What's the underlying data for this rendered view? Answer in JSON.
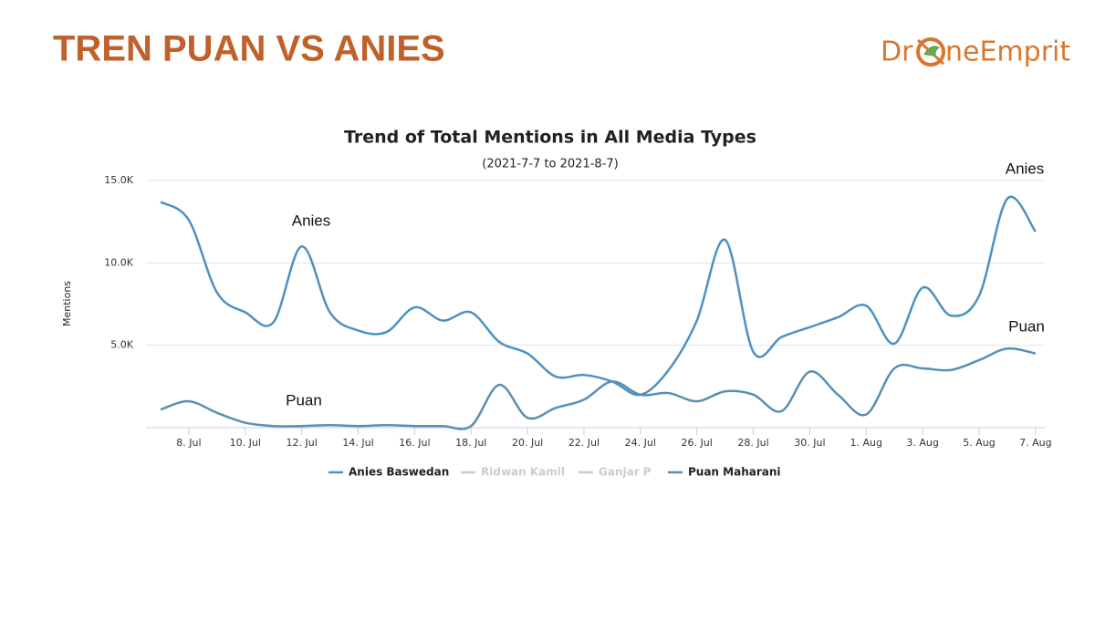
{
  "header": {
    "title": "TREN PUAN VS ANIES",
    "logo": [
      "Dr",
      "neEmprit"
    ]
  },
  "chart_data": {
    "type": "line",
    "title": "Trend of Total Mentions in All Media Types",
    "subtitle": "(2021-7-7 to 2021-8-7)",
    "y_label": "Mentions",
    "categories": [
      null,
      "8. Jul",
      null,
      "10. Jul",
      null,
      "12. Jul",
      null,
      "14. Jul",
      null,
      "16. Jul",
      null,
      "18. Jul",
      null,
      "20. Jul",
      null,
      "22. Jul",
      null,
      "24. Jul",
      null,
      "26. Jul",
      null,
      "28. Jul",
      null,
      "30. Jul",
      null,
      "1. Aug",
      null,
      "3. Aug",
      null,
      "5. Aug",
      null,
      "7. Aug"
    ],
    "ylim": [
      0,
      15000
    ],
    "yticks": [
      {
        "value": 5000,
        "label": "5.0K"
      },
      {
        "value": 10000,
        "label": "10.0K"
      },
      {
        "value": 15000,
        "label": "15.0K"
      }
    ],
    "grid": true,
    "series": [
      {
        "name": "Anies Baswedan",
        "color": "#4e91c0",
        "visible": true,
        "values": [
          13700,
          12600,
          8200,
          7000,
          6400,
          11000,
          7000,
          5900,
          5800,
          7300,
          6500,
          7000,
          5200,
          4500,
          3100,
          3200,
          2800,
          2000,
          3500,
          6500,
          11400,
          4600,
          5500,
          6100,
          6700,
          7400,
          5100,
          8500,
          6800,
          8000,
          13900,
          11900
        ]
      },
      {
        "name": "Ridwan Kamil",
        "color": "#cccccc",
        "visible": false
      },
      {
        "name": "Ganjar P",
        "color": "#cccccc",
        "visible": false
      },
      {
        "name": "Puan Maharani",
        "color": "#5a8fb2",
        "visible": true,
        "values": [
          1100,
          1600,
          900,
          300,
          100,
          100,
          150,
          100,
          150,
          100,
          100,
          100,
          2600,
          600,
          1200,
          1700,
          2800,
          2000,
          2100,
          1600,
          2200,
          2000,
          1000,
          3400,
          2000,
          800,
          3600,
          3600,
          3500,
          4100,
          4800,
          4500
        ]
      }
    ],
    "annotations": [
      "Anies",
      "Anies",
      "Puan",
      "Puan"
    ]
  }
}
